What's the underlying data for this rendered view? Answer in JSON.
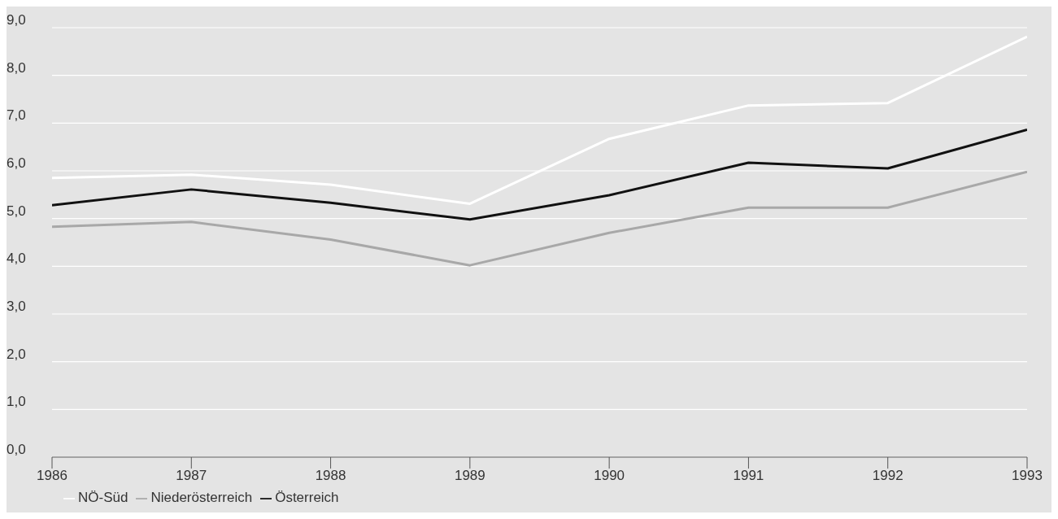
{
  "chart_data": {
    "type": "line",
    "x": [
      1986,
      1987,
      1988,
      1989,
      1990,
      1991,
      1992,
      1993
    ],
    "xlim": [
      1986,
      1993
    ],
    "xticks": [
      1986,
      1987,
      1988,
      1989,
      1990,
      1991,
      1992,
      1993
    ],
    "ylim": [
      0,
      9
    ],
    "yticks": [
      {
        "value": 0,
        "label": "0,0"
      },
      {
        "value": 1,
        "label": "1,0"
      },
      {
        "value": 2,
        "label": "2,0"
      },
      {
        "value": 3,
        "label": "3,0"
      },
      {
        "value": 4,
        "label": "4,0"
      },
      {
        "value": 5,
        "label": "5,0"
      },
      {
        "value": 6,
        "label": "6,0"
      },
      {
        "value": 7,
        "label": "7,0"
      },
      {
        "value": 8,
        "label": "8,0"
      },
      {
        "value": 9,
        "label": "9,0"
      }
    ],
    "series": [
      {
        "name": "NÖ-Süd",
        "color": "#ffffff",
        "values": [
          5.85,
          5.92,
          5.71,
          5.31,
          6.67,
          7.37,
          7.42,
          8.81
        ]
      },
      {
        "name": "Niederösterreich",
        "color": "#a8a8a8",
        "values": [
          4.83,
          4.93,
          4.56,
          4.02,
          4.7,
          5.23,
          5.23,
          5.98
        ]
      },
      {
        "name": "Österreich",
        "color": "#111111",
        "values": [
          5.28,
          5.61,
          5.33,
          4.98,
          5.49,
          6.17,
          6.05,
          6.86
        ]
      }
    ],
    "grid": "y",
    "legend": "bottom left",
    "marker": "none",
    "line_style": "solid"
  }
}
